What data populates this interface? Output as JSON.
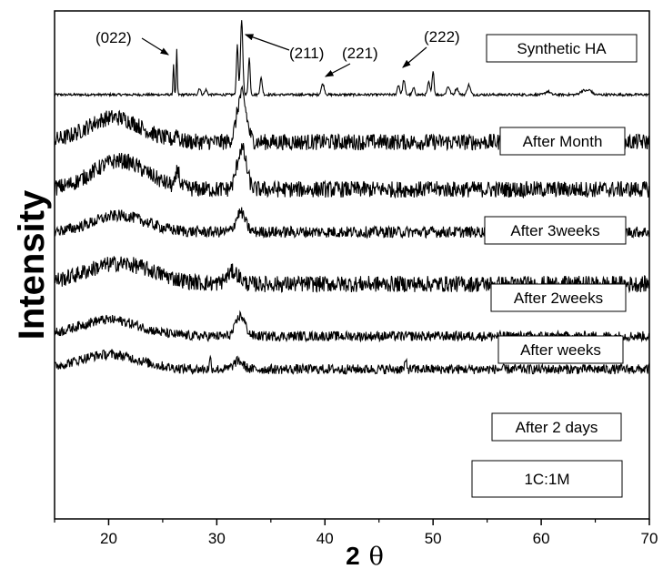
{
  "chart_data": {
    "type": "line",
    "xlabel": "2 θ",
    "xlabel_parts": [
      "2",
      "θ"
    ],
    "ylabel": "Intensity",
    "xlim": [
      15,
      70
    ],
    "xticks": [
      "20",
      "30",
      "40",
      "50",
      "60",
      "70"
    ],
    "y_ticks_shown": false,
    "grid": false,
    "legend": "none (curve labels boxed at right of each trace)",
    "series": [
      {
        "name": "Synthetic HA",
        "baseline": 100,
        "noise": 1.5,
        "peaks": [
          [
            26.0,
            0.07,
            38
          ],
          [
            26.3,
            0.07,
            55
          ],
          [
            28.4,
            0.15,
            8
          ],
          [
            29.0,
            0.15,
            6
          ],
          [
            31.9,
            0.12,
            60
          ],
          [
            32.3,
            0.15,
            90
          ],
          [
            33.0,
            0.12,
            45
          ],
          [
            34.1,
            0.15,
            20
          ],
          [
            39.8,
            0.2,
            13
          ],
          [
            46.8,
            0.15,
            12
          ],
          [
            47.3,
            0.15,
            18
          ],
          [
            48.2,
            0.15,
            8
          ],
          [
            49.6,
            0.15,
            15
          ],
          [
            50.0,
            0.12,
            30
          ],
          [
            51.4,
            0.2,
            10
          ],
          [
            52.2,
            0.2,
            8
          ],
          [
            53.3,
            0.2,
            12
          ],
          [
            60.6,
            0.3,
            4
          ],
          [
            63.9,
            0.4,
            5
          ],
          [
            64.5,
            0.3,
            5
          ]
        ]
      },
      {
        "name": "After Month",
        "baseline": 150,
        "noise": 10,
        "hump": [
          20.5,
          3.5,
          30
        ],
        "peaks": [
          [
            32.3,
            0.6,
            58
          ],
          [
            26.3,
            0.2,
            12
          ]
        ]
      },
      {
        "name": "After 3weeks",
        "baseline": 200,
        "noise": 10,
        "hump": [
          21,
          3.5,
          35
        ],
        "peaks": [
          [
            32.3,
            0.6,
            50
          ],
          [
            26.4,
            0.2,
            22
          ]
        ]
      },
      {
        "name": "After 2weeks",
        "baseline": 245,
        "noise": 7,
        "hump": [
          21,
          3.5,
          20
        ],
        "peaks": [
          [
            32.2,
            0.6,
            24
          ]
        ]
      },
      {
        "name": "After weeks",
        "baseline": 300,
        "noise": 10,
        "hump": [
          21,
          4.5,
          25
        ],
        "peaks": [
          [
            31.5,
            0.8,
            15
          ]
        ]
      },
      {
        "name": "After 2 days",
        "baseline": 355,
        "noise": 6,
        "hump": [
          20,
          4,
          20
        ],
        "peaks": [
          [
            32.2,
            0.6,
            25
          ]
        ]
      },
      {
        "name": "1C:1M",
        "baseline": 390,
        "noise": 6,
        "hump": [
          20,
          4,
          18
        ],
        "peaks": [
          [
            29.4,
            0.12,
            12
          ],
          [
            32.0,
            0.6,
            10
          ],
          [
            47.5,
            0.12,
            10
          ]
        ]
      }
    ],
    "annotations": [
      {
        "text": "(022)",
        "points_to_x": 26.2
      },
      {
        "text": "(211)",
        "points_to_x": 32.6
      },
      {
        "text": "(221)",
        "points_to_x": 39.8
      },
      {
        "text": "(222)",
        "points_to_x": 47.0
      }
    ]
  }
}
